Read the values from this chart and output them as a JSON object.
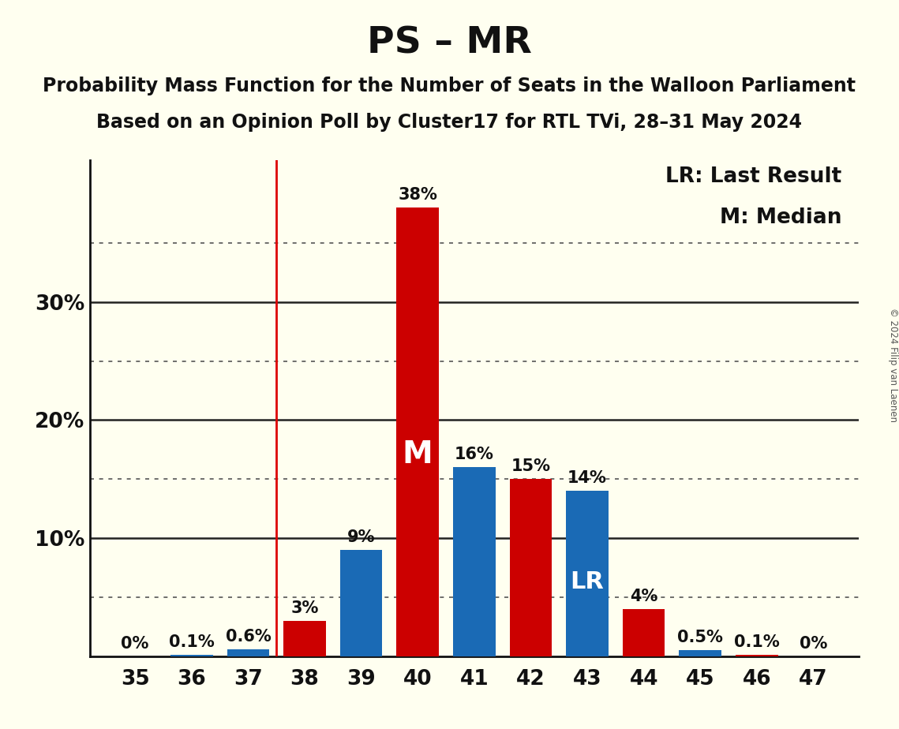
{
  "title": "PS – MR",
  "subtitle1": "Probability Mass Function for the Number of Seats in the Walloon Parliament",
  "subtitle2": "Based on an Opinion Poll by Cluster17 for RTL TVi, 28–31 May 2024",
  "copyright": "© 2024 Filip van Laenen",
  "seats": [
    35,
    36,
    37,
    38,
    39,
    40,
    41,
    42,
    43,
    44,
    45,
    46,
    47
  ],
  "probabilities": [
    0.0,
    0.1,
    0.6,
    3.0,
    9.0,
    38.0,
    16.0,
    15.0,
    14.0,
    4.0,
    0.5,
    0.1,
    0.0
  ],
  "labels": [
    "0%",
    "0.1%",
    "0.6%",
    "3%",
    "9%",
    "38%",
    "16%",
    "15%",
    "14%",
    "4%",
    "0.5%",
    "0.1%",
    "0%"
  ],
  "bar_colors": [
    "#cc0000",
    "#1a6ab5",
    "#1a6ab5",
    "#cc0000",
    "#1a6ab5",
    "#cc0000",
    "#1a6ab5",
    "#cc0000",
    "#1a6ab5",
    "#cc0000",
    "#1a6ab5",
    "#cc0000",
    "#1a6ab5"
  ],
  "last_result_seat": 43,
  "median_seat": 40,
  "lr_line_seat": 37.5,
  "background_color": "#fffff0",
  "grid_color": "#222222",
  "dotted_grid_color": "#555555",
  "solid_yticks": [
    10,
    20,
    30
  ],
  "dotted_yticks": [
    5,
    15,
    25,
    35
  ],
  "ylim": [
    0,
    42
  ],
  "legend_lr": "LR: Last Result",
  "legend_m": "M: Median",
  "bar_width": 0.75,
  "title_fontsize": 34,
  "subtitle_fontsize": 17,
  "label_fontsize": 15,
  "tick_fontsize": 19,
  "legend_fontsize": 19,
  "m_fontsize": 28,
  "lr_fontsize": 22,
  "red_line_color": "#dd0000",
  "axis_color": "#111111"
}
